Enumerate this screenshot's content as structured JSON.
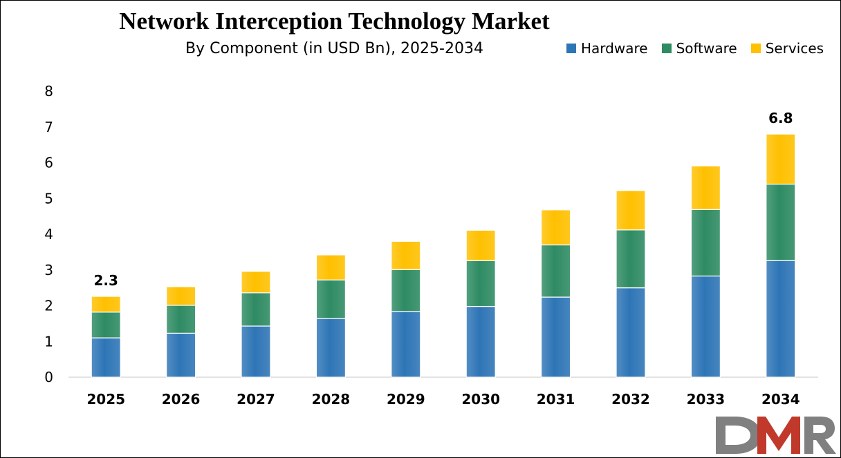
{
  "chart_data": {
    "type": "bar",
    "stacked": true,
    "title": "Network Interception Technology Market",
    "subtitle": "By Component (in USD Bn), 2025-2034",
    "xlabel": "",
    "ylabel": "",
    "ylim": [
      0,
      8
    ],
    "yticks": [
      0,
      1,
      2,
      3,
      4,
      5,
      6,
      7,
      8
    ],
    "grid": false,
    "legend_position": "top-right",
    "categories": [
      "2025",
      "2026",
      "2027",
      "2028",
      "2029",
      "2030",
      "2031",
      "2032",
      "2033",
      "2034"
    ],
    "series": [
      {
        "name": "Hardware",
        "color": "#2E75B6",
        "values": [
          1.1,
          1.23,
          1.43,
          1.64,
          1.84,
          1.98,
          2.24,
          2.5,
          2.83,
          3.26
        ]
      },
      {
        "name": "Software",
        "color": "#2E8B63",
        "values": [
          0.72,
          0.78,
          0.93,
          1.08,
          1.17,
          1.28,
          1.46,
          1.62,
          1.86,
          2.14
        ]
      },
      {
        "name": "Services",
        "color": "#FFC000",
        "values": [
          0.44,
          0.52,
          0.6,
          0.7,
          0.79,
          0.85,
          0.98,
          1.1,
          1.22,
          1.4
        ]
      }
    ],
    "data_labels": [
      {
        "category": "2025",
        "text": "2.3"
      },
      {
        "category": "2034",
        "text": "6.8"
      }
    ]
  },
  "logo": {
    "text": "DMR"
  }
}
